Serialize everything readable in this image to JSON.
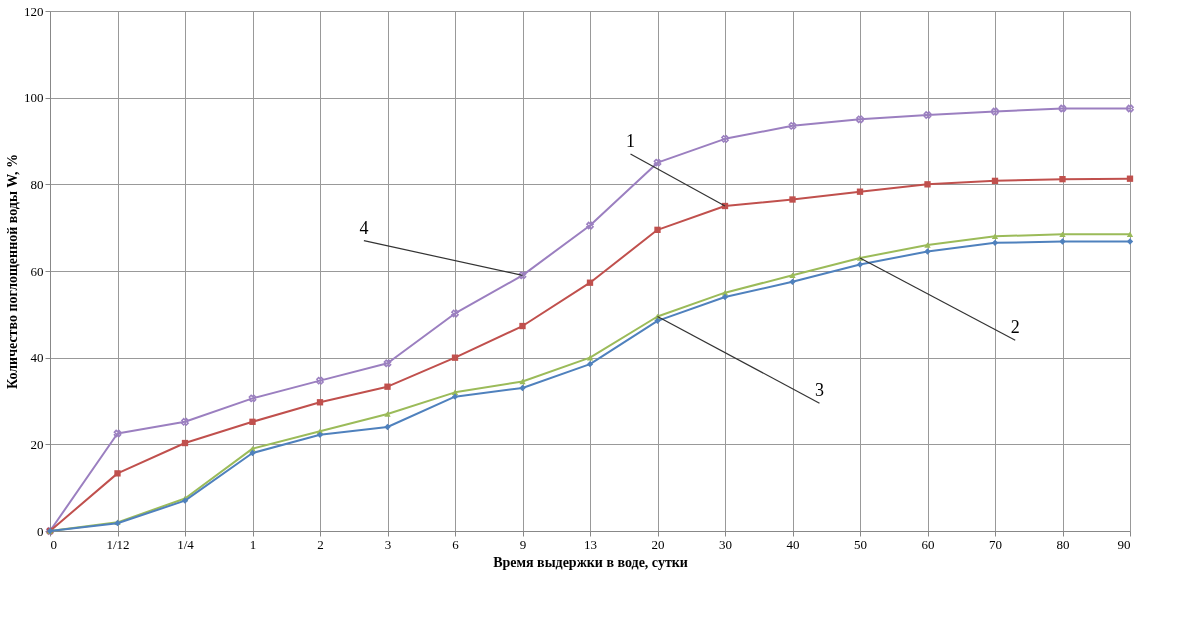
{
  "chart_data": {
    "type": "line",
    "xlabel": "Время выдержки в воде, сутки",
    "ylabel": "Количество поглощенной воды  W, %",
    "categories": [
      "0",
      "1/12",
      "1/4",
      "1",
      "2",
      "3",
      "6",
      "9",
      "13",
      "20",
      "30",
      "40",
      "50",
      "60",
      "70",
      "80",
      "90"
    ],
    "ylim": [
      0,
      120
    ],
    "yticks": [
      0,
      20,
      40,
      60,
      80,
      100,
      120
    ],
    "grid": true,
    "line_style": "solid",
    "series": [
      {
        "color": "#9b7fc0",
        "marker": "cross",
        "values": [
          0,
          22.5,
          25.2,
          30.6,
          34.7,
          38.7,
          50.2,
          59,
          70.5,
          85,
          90.5,
          93.5,
          95,
          96,
          96.8,
          97.5,
          97.5
        ]
      },
      {
        "color": "#c0504d",
        "marker": "square",
        "values": [
          0,
          13.3,
          20.3,
          25.2,
          29.7,
          33.3,
          40,
          47.3,
          57.3,
          69.5,
          75,
          76.5,
          78.3,
          80,
          80.8,
          81.2,
          81.3
        ]
      },
      {
        "color": "#9bbb59",
        "marker": "triangle",
        "values": [
          0,
          2,
          7.5,
          19,
          23,
          27,
          32,
          34.5,
          40,
          49.5,
          55,
          59,
          63,
          66,
          68,
          68.5,
          68.5
        ]
      },
      {
        "color": "#4f81bd",
        "marker": "diamond",
        "values": [
          0,
          1.8,
          7,
          18,
          22.2,
          24,
          31,
          33,
          38.5,
          48.5,
          54,
          57.5,
          61.5,
          64.5,
          66.5,
          66.8,
          66.8
        ]
      }
    ],
    "annotations": [
      {
        "text": "1",
        "x": "30",
        "y": 75
      },
      {
        "text": "2",
        "x": "50",
        "y": 63
      },
      {
        "text": "3",
        "x": "20",
        "y": 49.5
      },
      {
        "text": "4",
        "x": "9",
        "y": 59
      }
    ]
  }
}
